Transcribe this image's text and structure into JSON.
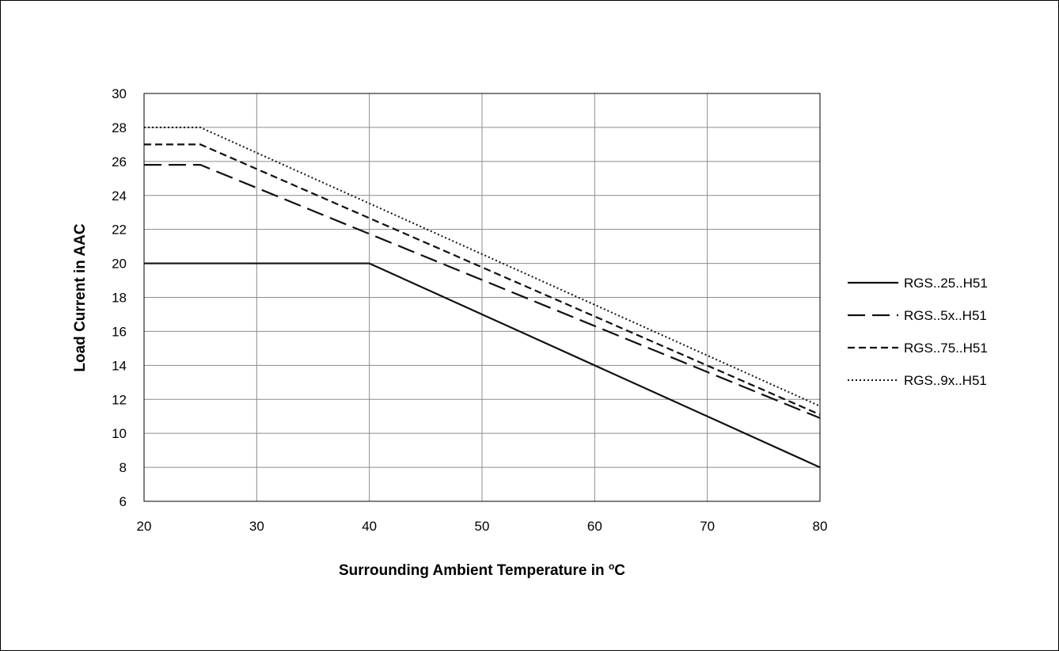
{
  "chart_data": {
    "type": "line",
    "xlabel_main": "Surrounding Ambient Temperature in ",
    "xlabel_sup": "o",
    "xlabel_unit": "C",
    "ylabel": "Load Current in AAC",
    "xlim": [
      20,
      80
    ],
    "ylim": [
      6,
      30
    ],
    "xticks": [
      20,
      30,
      40,
      50,
      60,
      70,
      80
    ],
    "yticks": [
      6,
      8,
      10,
      12,
      14,
      16,
      18,
      20,
      22,
      24,
      26,
      28,
      30
    ],
    "grid": true,
    "legend_position": "right",
    "series": [
      {
        "name": "RGS..25..H51",
        "style": "solid",
        "x": [
          20,
          40,
          80
        ],
        "y": [
          20,
          20,
          8
        ]
      },
      {
        "name": "RGS..5x..H51",
        "style": "longdash",
        "x": [
          20,
          25,
          80
        ],
        "y": [
          25.8,
          25.8,
          10.9
        ]
      },
      {
        "name": "RGS..75..H51",
        "style": "dash",
        "x": [
          20,
          25,
          80
        ],
        "y": [
          27,
          27,
          11.1
        ]
      },
      {
        "name": "RGS..9x..H51",
        "style": "dotted",
        "x": [
          20,
          25,
          80
        ],
        "y": [
          28,
          28,
          11.6
        ]
      }
    ]
  }
}
